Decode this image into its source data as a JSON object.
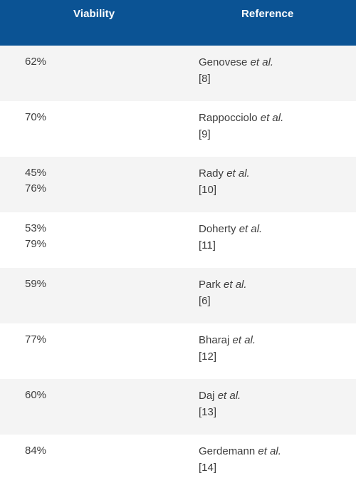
{
  "header": {
    "viability": "Viability",
    "reference": "Reference"
  },
  "rows": [
    {
      "values": [
        "62%"
      ],
      "author": "Genovese",
      "etal": "et al.",
      "citation": "[8]"
    },
    {
      "values": [
        "70%"
      ],
      "author": "Rappocciolo",
      "etal": "et al.",
      "citation": "[9]"
    },
    {
      "values": [
        "45%",
        "76%"
      ],
      "author": "Rady",
      "etal": "et al.",
      "citation": "[10]"
    },
    {
      "values": [
        "53%",
        "79%"
      ],
      "author": "Doherty",
      "etal": "et al.",
      "citation": "[11]"
    },
    {
      "values": [
        "59%"
      ],
      "author": "Park",
      "etal": "et al.",
      "citation": "[6]"
    },
    {
      "values": [
        "77%"
      ],
      "author": "Bharaj",
      "etal": "et al.",
      "citation": "[12]"
    },
    {
      "values": [
        "60%"
      ],
      "author": "Daj",
      "etal": "et al.",
      "citation": "[13]"
    },
    {
      "values": [
        "84%"
      ],
      "author": "Gerdemann",
      "etal": "et al.",
      "citation": "[14]"
    }
  ]
}
